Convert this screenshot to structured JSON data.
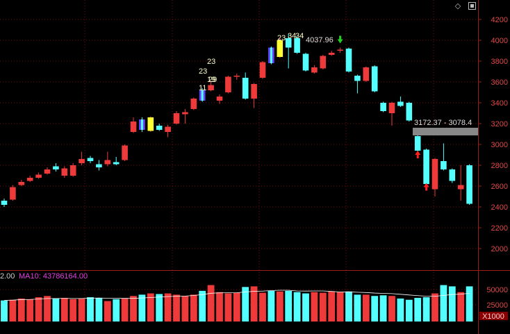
{
  "toolbar": {
    "icons": [
      "diamond-icon",
      "window-toggle-icon"
    ]
  },
  "volume_legend": {
    "left_value": "2.00",
    "ma_label": "MA10: 43786164.00"
  },
  "annotations": {
    "peak_label": "4037.96",
    "range_label": "3172.37 - 3078.4",
    "marker_numbers": [
      "23",
      "23",
      "19",
      "29",
      "11",
      "23",
      "34",
      "34"
    ]
  },
  "colors": {
    "up": "#ee3a3a",
    "down": "#54ffff",
    "grid": "#7a0d0d",
    "axis": "#9a1c1c",
    "axis_text": "#e04848",
    "ma_text": "#e040e0",
    "highlight_yellow": "#ffff33",
    "highlight_purple": "#6644ff"
  },
  "chart_data": [
    {
      "type": "candlestick",
      "ylim": [
        1850,
        4250
      ],
      "yticks": [
        2000,
        2200,
        2400,
        2600,
        2800,
        3000,
        3200,
        3400,
        3600,
        3800,
        4000,
        4200
      ],
      "grid": true,
      "candles": [
        {
          "o": 2460,
          "c": 2420,
          "h": 2480,
          "l": 2400
        },
        {
          "o": 2470,
          "c": 2590,
          "h": 2610,
          "l": 2460
        },
        {
          "o": 2610,
          "c": 2640,
          "h": 2660,
          "l": 2600
        },
        {
          "o": 2650,
          "c": 2680,
          "h": 2700,
          "l": 2640
        },
        {
          "o": 2680,
          "c": 2710,
          "h": 2730,
          "l": 2670
        },
        {
          "o": 2720,
          "c": 2760,
          "h": 2780,
          "l": 2710
        },
        {
          "o": 2790,
          "c": 2760,
          "h": 2820,
          "l": 2740
        },
        {
          "o": 2700,
          "c": 2770,
          "h": 2790,
          "l": 2680
        },
        {
          "o": 2700,
          "c": 2800,
          "h": 2820,
          "l": 2690
        },
        {
          "o": 2820,
          "c": 2860,
          "h": 2930,
          "l": 2800
        },
        {
          "o": 2870,
          "c": 2840,
          "h": 2890,
          "l": 2820
        },
        {
          "o": 2810,
          "c": 2780,
          "h": 2850,
          "l": 2750
        },
        {
          "o": 2810,
          "c": 2850,
          "h": 2930,
          "l": 2790
        },
        {
          "o": 2830,
          "c": 2810,
          "h": 2880,
          "l": 2800
        },
        {
          "o": 2850,
          "c": 2990,
          "h": 3000,
          "l": 2840
        },
        {
          "o": 3120,
          "c": 3220,
          "h": 3260,
          "l": 3110
        },
        {
          "o": 3240,
          "c": 3140,
          "h": 3260,
          "l": 3120,
          "hl": "purple"
        },
        {
          "o": 3130,
          "c": 3260,
          "h": 3270,
          "l": 3120,
          "hl": "yellow"
        },
        {
          "o": 3180,
          "c": 3140,
          "h": 3200,
          "l": 3130
        },
        {
          "o": 3120,
          "c": 3170,
          "h": 3190,
          "l": 3070
        },
        {
          "o": 3200,
          "c": 3300,
          "h": 3320,
          "l": 3190
        },
        {
          "o": 3290,
          "c": 3310,
          "h": 3340,
          "l": 3200
        },
        {
          "o": 3340,
          "c": 3440,
          "h": 3450,
          "l": 3330
        },
        {
          "o": 3520,
          "c": 3420,
          "h": 3540,
          "l": 3410,
          "hl": "purple"
        },
        {
          "o": 3520,
          "c": 3570,
          "h": 3610,
          "l": 3510
        },
        {
          "o": 3420,
          "c": 3460,
          "h": 3480,
          "l": 3390
        },
        {
          "o": 3500,
          "c": 3650,
          "h": 3660,
          "l": 3490
        },
        {
          "o": 3650,
          "c": 3660,
          "h": 3680,
          "l": 3620
        },
        {
          "o": 3640,
          "c": 3440,
          "h": 3690,
          "l": 3430
        },
        {
          "o": 3440,
          "c": 3580,
          "h": 3590,
          "l": 3350
        },
        {
          "o": 3640,
          "c": 3790,
          "h": 3800,
          "l": 3630
        },
        {
          "o": 3930,
          "c": 3780,
          "h": 3940,
          "l": 3770,
          "hl": "purple"
        },
        {
          "o": 3840,
          "c": 4000,
          "h": 4020,
          "l": 3830,
          "hl": "yellow"
        },
        {
          "o": 4020,
          "c": 3930,
          "h": 4060,
          "l": 3730
        },
        {
          "o": 4020,
          "c": 3880,
          "h": 4040,
          "l": 3870
        },
        {
          "o": 3870,
          "c": 3710,
          "h": 3880,
          "l": 3700
        },
        {
          "o": 3690,
          "c": 3740,
          "h": 3760,
          "l": 3680
        },
        {
          "o": 3730,
          "c": 3850,
          "h": 3860,
          "l": 3720
        },
        {
          "o": 3860,
          "c": 3880,
          "h": 3900,
          "l": 3850
        },
        {
          "o": 3900,
          "c": 3910,
          "h": 3930,
          "l": 3880
        },
        {
          "o": 3920,
          "c": 3700,
          "h": 3930,
          "l": 3690
        },
        {
          "o": 3660,
          "c": 3610,
          "h": 3670,
          "l": 3490
        },
        {
          "o": 3610,
          "c": 3740,
          "h": 3750,
          "l": 3600
        },
        {
          "o": 3750,
          "c": 3510,
          "h": 3760,
          "l": 3500
        },
        {
          "o": 3400,
          "c": 3320,
          "h": 3410,
          "l": 3310
        },
        {
          "o": 3300,
          "c": 3400,
          "h": 3410,
          "l": 3180
        },
        {
          "o": 3410,
          "c": 3370,
          "h": 3460,
          "l": 3360
        },
        {
          "o": 3400,
          "c": 3230,
          "h": 3410,
          "l": 3220
        },
        {
          "o": 3080,
          "c": 2940,
          "h": 3090,
          "l": 2930
        },
        {
          "o": 2950,
          "c": 2620,
          "h": 2960,
          "l": 2610
        },
        {
          "o": 2570,
          "c": 2860,
          "h": 2870,
          "l": 2500
        },
        {
          "o": 2840,
          "c": 2760,
          "h": 3010,
          "l": 2750
        },
        {
          "o": 2760,
          "c": 2650,
          "h": 2770,
          "l": 2630
        },
        {
          "o": 2570,
          "c": 2610,
          "h": 2800,
          "l": 2460
        },
        {
          "o": 2800,
          "c": 2430,
          "h": 2810,
          "l": 2420
        }
      ],
      "markers": [
        {
          "type": "arrow-up",
          "candle": 48,
          "value": 2900
        },
        {
          "type": "arrow-up",
          "candle": 49,
          "value": 2590
        },
        {
          "type": "arrow-down",
          "candle": 39,
          "value": 4010
        }
      ]
    },
    {
      "type": "bar",
      "yticks": [
        50000,
        25000
      ],
      "unit": "X1000",
      "vol": [
        33000,
        34000,
        36000,
        35000,
        38000,
        40000,
        36000,
        37000,
        35000,
        36000,
        38000,
        37000,
        32000,
        35000,
        36000,
        40000,
        42000,
        44000,
        43000,
        44000,
        42000,
        40000,
        42000,
        48000,
        57000,
        46000,
        44000,
        45000,
        54000,
        55000,
        45000,
        48000,
        47000,
        48000,
        46000,
        44000,
        46000,
        45000,
        47000,
        46000,
        47000,
        42000,
        42000,
        40000,
        41000,
        40000,
        36000,
        34000,
        37000,
        38000,
        44000,
        57000,
        55000,
        46000,
        55000
      ]
    }
  ]
}
